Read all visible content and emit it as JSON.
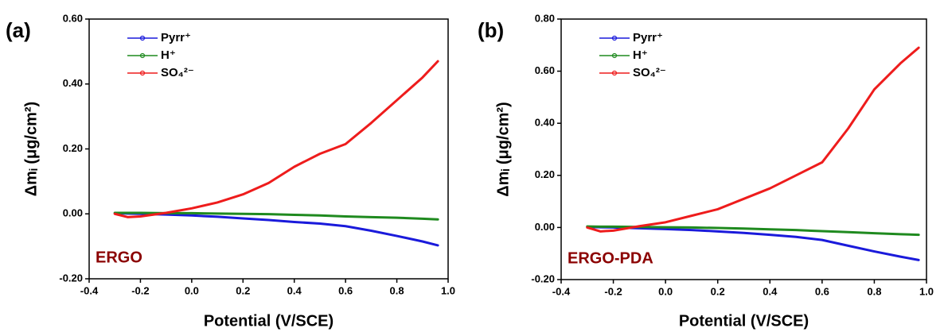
{
  "chart_data": [
    {
      "type": "line",
      "panel_label": "(a)",
      "annotation": "ERGO",
      "annotation_color": "#8b0000",
      "xlabel": "Potential (V/SCE)",
      "ylabel": "Δmᵢ (μg/cm²)",
      "xlim": [
        -0.4,
        1.0
      ],
      "xticks": [
        -0.4,
        -0.2,
        {
          "value": 0,
          "label": "0.0"
        },
        0.2,
        0.4,
        0.6,
        0.8,
        {
          "value": 1,
          "label": "1.0"
        }
      ],
      "ylim": [
        -0.2,
        0.6
      ],
      "yticks": [
        {
          "value": -0.2,
          "label": "-0.20"
        },
        {
          "value": 0,
          "label": "0.00"
        },
        {
          "value": 0.2,
          "label": "0.20"
        },
        {
          "value": 0.4,
          "label": "0.40"
        },
        {
          "value": 0.6,
          "label": "0.60"
        }
      ],
      "x": [
        -0.3,
        -0.25,
        -0.2,
        -0.1,
        0,
        0.1,
        0.2,
        0.3,
        0.4,
        0.5,
        0.6,
        0.7,
        0.8,
        0.9,
        0.96
      ],
      "series": [
        {
          "name": "Pyrr⁺",
          "color": "#1a1adb",
          "values": [
            0.002,
            0.001,
            0,
            -0.002,
            -0.005,
            -0.009,
            -0.014,
            -0.019,
            -0.025,
            -0.03,
            -0.038,
            -0.052,
            -0.068,
            -0.085,
            -0.097
          ]
        },
        {
          "name": "H⁺",
          "color": "#1f8a1f",
          "values": [
            0.003,
            0.003,
            0.003,
            0.002,
            0.002,
            0.001,
            0,
            -0.001,
            -0.003,
            -0.005,
            -0.008,
            -0.01,
            -0.012,
            -0.015,
            -0.017
          ]
        },
        {
          "name": "SO₄²⁻",
          "color": "#ee1c1c",
          "values": [
            0,
            -0.01,
            -0.008,
            0.003,
            0.017,
            0.035,
            0.06,
            0.095,
            0.145,
            0.185,
            0.215,
            0.28,
            0.35,
            0.42,
            0.47
          ]
        }
      ]
    },
    {
      "type": "line",
      "panel_label": "(b)",
      "annotation": "ERGO-PDA",
      "annotation_color": "#8b0000",
      "xlabel": "Potential (V/SCE)",
      "ylabel": "Δmᵢ (μg/cm²)",
      "xlim": [
        -0.4,
        1.0
      ],
      "xticks": [
        -0.4,
        -0.2,
        {
          "value": 0,
          "label": "0.0"
        },
        0.2,
        0.4,
        0.6,
        0.8,
        {
          "value": 1,
          "label": "1.0"
        }
      ],
      "ylim": [
        -0.2,
        0.8
      ],
      "yticks": [
        {
          "value": -0.2,
          "label": "-0.20"
        },
        {
          "value": 0,
          "label": "0.00"
        },
        {
          "value": 0.2,
          "label": "0.20"
        },
        {
          "value": 0.4,
          "label": "0.40"
        },
        {
          "value": 0.6,
          "label": "0.60"
        },
        {
          "value": 0.8,
          "label": "0.80"
        }
      ],
      "x": [
        -0.3,
        -0.25,
        -0.2,
        -0.1,
        0,
        0.1,
        0.2,
        0.3,
        0.4,
        0.5,
        0.6,
        0.7,
        0.8,
        0.9,
        0.97
      ],
      "series": [
        {
          "name": "Pyrr⁺",
          "color": "#1a1adb",
          "values": [
            0.002,
            0.001,
            0,
            -0.003,
            -0.006,
            -0.01,
            -0.015,
            -0.021,
            -0.028,
            -0.036,
            -0.048,
            -0.07,
            -0.092,
            -0.112,
            -0.125
          ]
        },
        {
          "name": "H⁺",
          "color": "#1f8a1f",
          "values": [
            0.004,
            0.003,
            0.003,
            0.002,
            0.001,
            0,
            -0.002,
            -0.004,
            -0.007,
            -0.01,
            -0.014,
            -0.018,
            -0.022,
            -0.026,
            -0.028
          ]
        },
        {
          "name": "SO₄²⁻",
          "color": "#ee1c1c",
          "values": [
            0,
            -0.015,
            -0.012,
            0.005,
            0.02,
            0.045,
            0.07,
            0.11,
            0.15,
            0.2,
            0.25,
            0.38,
            0.53,
            0.63,
            0.69
          ]
        }
      ]
    }
  ]
}
